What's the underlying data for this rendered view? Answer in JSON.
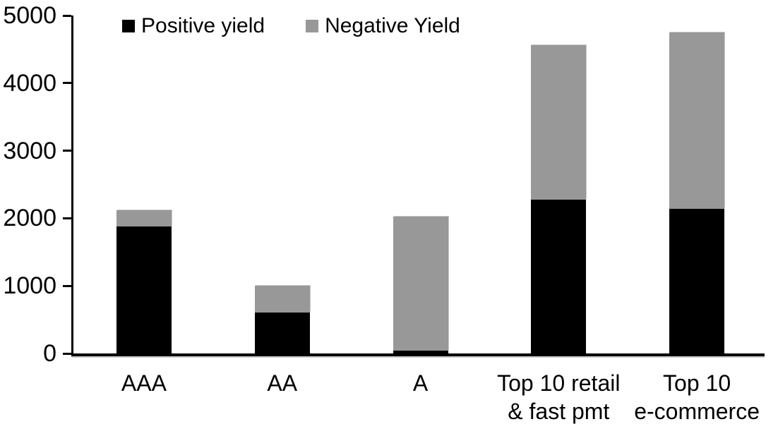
{
  "chart_data": {
    "type": "bar",
    "stacked": true,
    "title": "",
    "xlabel": "",
    "ylabel": "",
    "categories": [
      "AAA",
      "AA",
      "A",
      "Top 10 retail & fast pmt",
      "Top 10 e-commerce"
    ],
    "category_label_lines": [
      [
        "AAA"
      ],
      [
        "AA"
      ],
      [
        "A"
      ],
      [
        "Top 10 retail",
        "& fast pmt"
      ],
      [
        "Top 10",
        "e-commerce"
      ]
    ],
    "series": [
      {
        "name": "Positive yield",
        "color": "#000000",
        "values": [
          1880,
          610,
          40,
          2280,
          2140
        ]
      },
      {
        "name": "Negative Yield",
        "color": "#989898",
        "values": [
          235,
          390,
          1990,
          2280,
          2610
        ]
      }
    ],
    "totals": [
      2115,
      1000,
      2030,
      4560,
      4750
    ],
    "ylim": [
      0,
      5000
    ],
    "yticks": [
      0,
      1000,
      2000,
      3000,
      4000,
      5000
    ],
    "grid": false,
    "legend_position": "top"
  },
  "colors": {
    "background": "#ffffff",
    "axis": "#000000",
    "positive_series": "#000000",
    "negative_series": "#989898"
  }
}
